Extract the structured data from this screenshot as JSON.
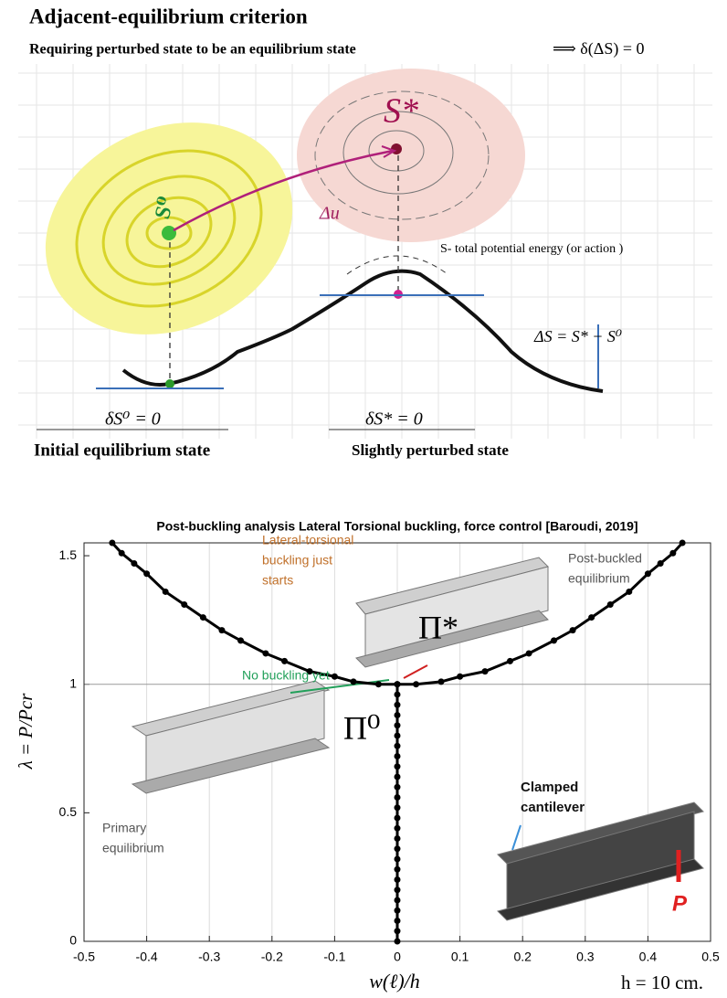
{
  "diagram": {
    "title": "Adjacent-equilibrium criterion",
    "subtitle": "Requiring perturbed state to be an equilibrium state",
    "subtitle_formula": "⟹  δ(ΔS) = 0",
    "s0_label": "S⁰",
    "s_star_label": "S*",
    "du_label": "Δu",
    "energy_label": "S- total potential energy (or action )",
    "delta_s_label": "ΔS = S* − S⁰",
    "ds0_label": "δS⁰ = 0",
    "ds_star_label": "δS* = 0",
    "initial_state": "Initial equilibrium state",
    "perturbed_state": "Slightly perturbed state"
  },
  "chart_data": {
    "type": "line",
    "title": "Post-buckling analysis Lateral Torsional buckling,  force control  [Baroudi, 2019]",
    "x_label": "w(ℓ)/h",
    "y_label": "λ = P/Pcr",
    "xlim": [
      -0.5,
      0.5
    ],
    "ylim": [
      0,
      1.55
    ],
    "xticks": [
      -0.5,
      -0.4,
      -0.3,
      -0.2,
      -0.1,
      0,
      0.1,
      0.2,
      0.3,
      0.4,
      0.5
    ],
    "yticks": [
      0,
      0.5,
      1,
      1.5
    ],
    "grid": "x",
    "hline": 1,
    "series": [
      {
        "color": "#000000",
        "x": [
          0,
          0,
          0,
          0,
          0,
          0,
          0,
          0,
          0,
          0,
          0,
          0,
          0,
          0,
          0,
          0,
          0,
          0,
          0,
          0,
          0,
          0,
          0,
          0,
          0,
          0
        ],
        "values": [
          0,
          0.04,
          0.08,
          0.12,
          0.16,
          0.2,
          0.24,
          0.28,
          0.32,
          0.36,
          0.4,
          0.44,
          0.48,
          0.52,
          0.56,
          0.6,
          0.64,
          0.68,
          0.72,
          0.76,
          0.8,
          0.84,
          0.88,
          0.92,
          0.96,
          1
        ]
      },
      {
        "color": "#000000",
        "x": [
          0,
          0.03,
          0.07,
          0.1,
          0.14,
          0.18,
          0.21,
          0.25,
          0.28,
          0.31,
          0.34,
          0.37,
          0.4,
          0.42,
          0.44,
          0.455
        ],
        "values": [
          1,
          1.0,
          1.01,
          1.03,
          1.05,
          1.09,
          1.12,
          1.17,
          1.21,
          1.26,
          1.31,
          1.36,
          1.43,
          1.47,
          1.51,
          1.55
        ]
      },
      {
        "color": "#000000",
        "x": [
          0,
          -0.03,
          -0.07,
          -0.1,
          -0.14,
          -0.18,
          -0.21,
          -0.25,
          -0.28,
          -0.31,
          -0.34,
          -0.37,
          -0.4,
          -0.42,
          -0.44,
          -0.455
        ],
        "values": [
          1,
          1.0,
          1.01,
          1.03,
          1.05,
          1.09,
          1.12,
          1.17,
          1.21,
          1.26,
          1.31,
          1.36,
          1.43,
          1.47,
          1.51,
          1.55
        ]
      }
    ],
    "annotations": [
      {
        "lines": [
          "Lateral-torsional",
          "buckling just",
          "starts"
        ],
        "color": "#c0702a"
      },
      {
        "lines": [
          "Post-buckled",
          "equilibrium"
        ],
        "color": "#555555"
      },
      {
        "lines": [
          "No buckling yet"
        ],
        "color": "#22a05a"
      },
      {
        "lines": [
          "Π*"
        ],
        "color": "#000000"
      },
      {
        "lines": [
          "Π⁰"
        ],
        "color": "#000000"
      },
      {
        "lines": [
          "Primary",
          "equilibrium"
        ],
        "color": "#555555"
      },
      {
        "lines": [
          "Clamped",
          "cantilever"
        ],
        "color": "#111111"
      },
      {
        "lines": [
          "P"
        ],
        "color": "#e02020"
      },
      {
        "lines": [
          "h = 10 cm."
        ],
        "color": "#000000"
      }
    ]
  }
}
